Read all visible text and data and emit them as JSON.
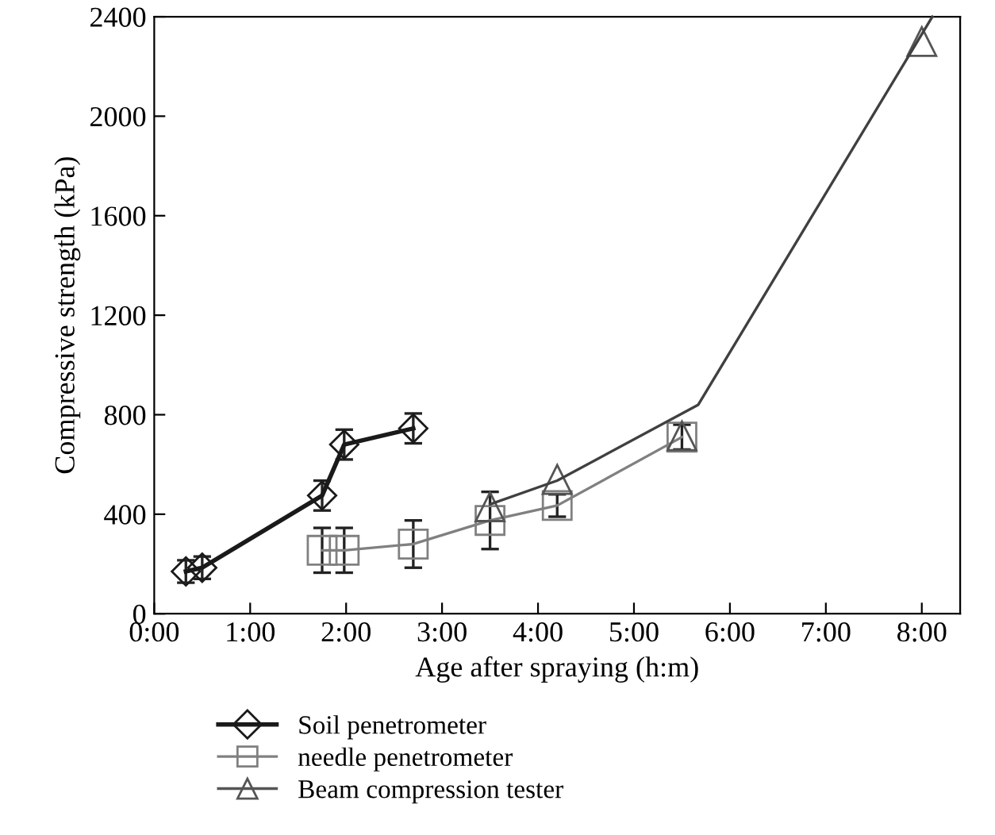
{
  "chart_data": {
    "type": "line",
    "xlabel": "Age after spraying (h:m)",
    "ylabel": "Compressive strength (kPa)",
    "xlim": [
      0,
      8.4
    ],
    "ylim": [
      0,
      2400
    ],
    "xticks": [
      {
        "value": 0,
        "label": "0:00"
      },
      {
        "value": 1,
        "label": "1:00"
      },
      {
        "value": 2,
        "label": "2:00"
      },
      {
        "value": 3,
        "label": "3:00"
      },
      {
        "value": 4,
        "label": "4:00"
      },
      {
        "value": 5,
        "label": "5:00"
      },
      {
        "value": 6,
        "label": "6:00"
      },
      {
        "value": 7,
        "label": "7:00"
      },
      {
        "value": 8,
        "label": "8:00"
      }
    ],
    "yticks": [
      0,
      400,
      800,
      1200,
      1600,
      2000,
      2400
    ],
    "grid": false,
    "legend": "bottom",
    "series": [
      {
        "name": "Soil penetrometer",
        "marker": "diamond",
        "color": "#1a1a1a",
        "x": [
          0.33,
          0.5,
          1.75,
          1.98,
          2.7
        ],
        "values": [
          170,
          185,
          475,
          680,
          745
        ],
        "errors": [
          45,
          45,
          60,
          60,
          60
        ]
      },
      {
        "name": "needle penetrometer",
        "marker": "square",
        "color": "#808080",
        "x": [
          1.75,
          1.98,
          2.7,
          3.5,
          4.2,
          5.5
        ],
        "values": [
          255,
          255,
          280,
          375,
          435,
          710
        ],
        "errors": [
          90,
          90,
          95,
          115,
          45,
          50
        ]
      },
      {
        "name": "Beam compression tester",
        "type": "scatter",
        "marker": "triangle",
        "color": "#555555",
        "x": [
          3.5,
          4.2,
          5.5,
          8.0
        ],
        "values": [
          430,
          540,
          715,
          2300
        ]
      },
      {
        "marker": "none",
        "color": "#404040",
        "x": [
          3.5,
          4.2,
          5.67,
          8.11
        ],
        "values": [
          440,
          535,
          840,
          2400
        ]
      }
    ]
  }
}
